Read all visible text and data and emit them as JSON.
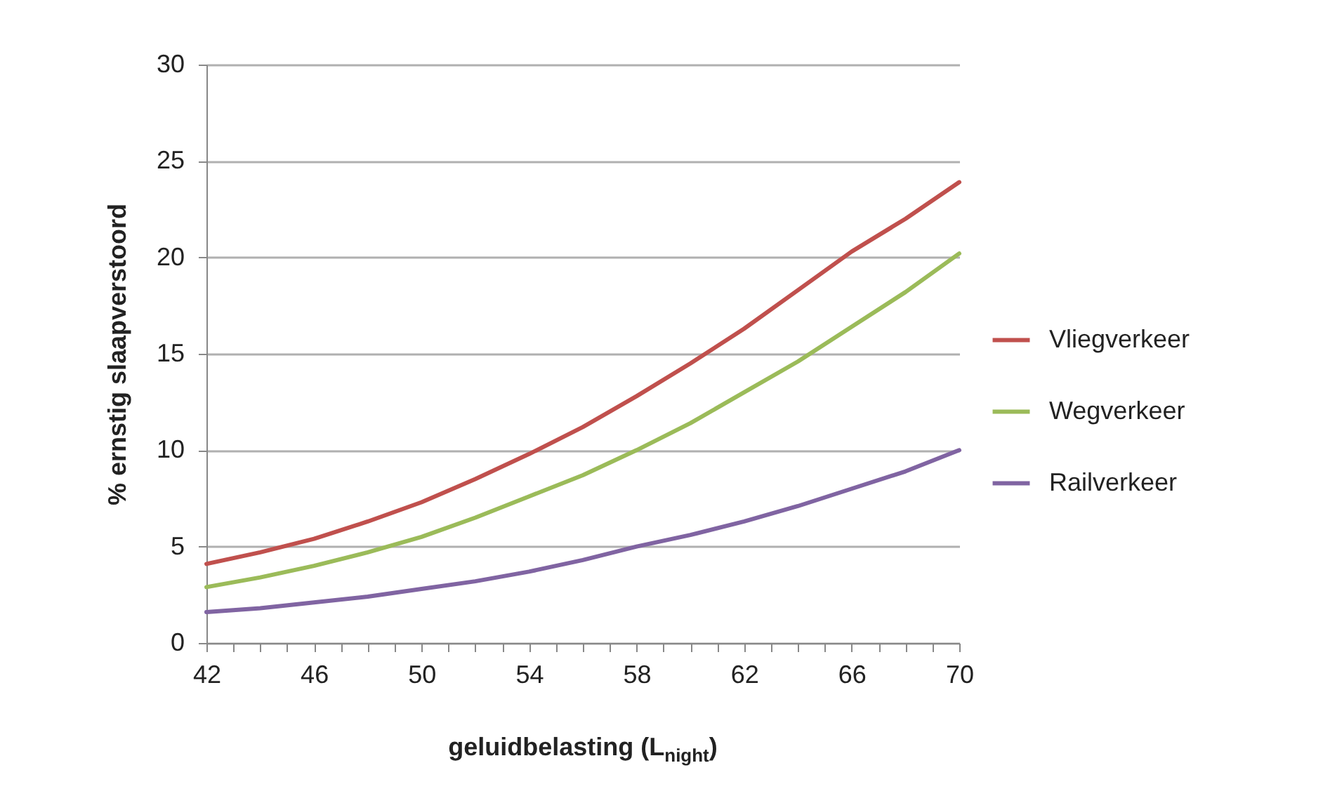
{
  "chart_data": {
    "type": "line",
    "xlabel": "geluidbelasting (L$_{night}$)",
    "ylabel": "% ernstig slaapverstoord",
    "x": [
      42,
      44,
      46,
      48,
      50,
      52,
      54,
      56,
      58,
      60,
      62,
      64,
      66,
      68,
      70
    ],
    "series": [
      {
        "name": "Vliegverkeer",
        "color": "#c0504d",
        "values": [
          4.1,
          4.7,
          5.4,
          6.3,
          7.3,
          8.5,
          9.8,
          11.2,
          12.8,
          14.5,
          16.3,
          18.3,
          20.3,
          22.0,
          23.9
        ]
      },
      {
        "name": "Wegverkeer",
        "color": "#9bbb59",
        "values": [
          2.9,
          3.4,
          4.0,
          4.7,
          5.5,
          6.5,
          7.6,
          8.7,
          10.0,
          11.4,
          13.0,
          14.6,
          16.4,
          18.2,
          20.2
        ]
      },
      {
        "name": "Railverkeer",
        "color": "#8064a2",
        "values": [
          1.6,
          1.8,
          2.1,
          2.4,
          2.8,
          3.2,
          3.7,
          4.3,
          5.0,
          5.6,
          6.3,
          7.1,
          8.0,
          8.9,
          10.0
        ]
      }
    ],
    "xlim": [
      42,
      70
    ],
    "xticks": [
      42,
      {
        "value": 43,
        "label": null
      },
      {
        "value": 44,
        "label": null
      },
      {
        "value": 45,
        "label": null
      },
      46,
      {
        "value": 47,
        "label": null
      },
      {
        "value": 48,
        "label": null
      },
      {
        "value": 49,
        "label": null
      },
      50,
      {
        "value": 51,
        "label": null
      },
      {
        "value": 52,
        "label": null
      },
      {
        "value": 53,
        "label": null
      },
      54,
      {
        "value": 55,
        "label": null
      },
      {
        "value": 56,
        "label": null
      },
      {
        "value": 57,
        "label": null
      },
      58,
      {
        "value": 59,
        "label": null
      },
      {
        "value": 60,
        "label": null
      },
      {
        "value": 61,
        "label": null
      },
      62,
      {
        "value": 63,
        "label": null
      },
      {
        "value": 64,
        "label": null
      },
      {
        "value": 65,
        "label": null
      },
      66,
      {
        "value": 67,
        "label": null
      },
      {
        "value": 68,
        "label": null
      },
      {
        "value": 69,
        "label": null
      },
      70
    ],
    "ylim": [
      0,
      30
    ],
    "yticks": [
      0,
      5,
      10,
      15,
      20,
      25,
      30
    ],
    "grid": "y",
    "legend": "right",
    "marker": "none",
    "line_style": "solid"
  }
}
